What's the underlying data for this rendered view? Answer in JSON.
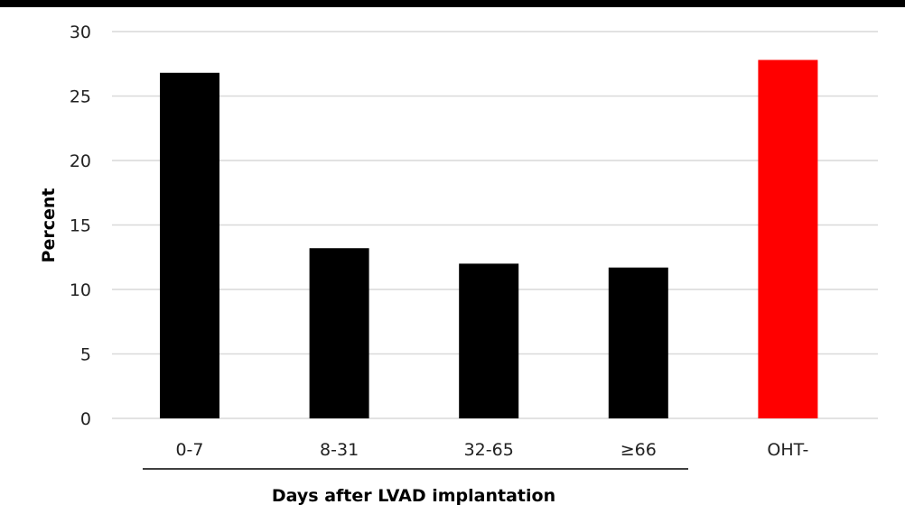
{
  "chart_data": {
    "type": "bar",
    "categories": [
      "0-7",
      "8-31",
      "32-65",
      "≥66",
      "OHT-"
    ],
    "values": [
      26.8,
      13.2,
      12.0,
      11.7,
      27.8
    ],
    "colors": [
      "#000000",
      "#000000",
      "#000000",
      "#000000",
      "#ff0000"
    ],
    "ylabel": "Percent",
    "xgroup_label": "Days after LVAD implantation",
    "ylim": [
      0,
      30
    ],
    "yticks": [
      0,
      5,
      10,
      15,
      20,
      25,
      30
    ],
    "grid": true,
    "gridline_color": "#d9d9d9"
  }
}
